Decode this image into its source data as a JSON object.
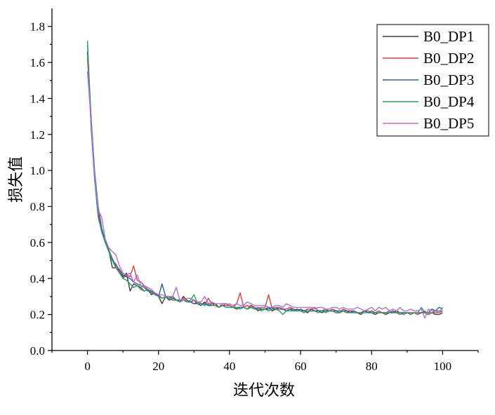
{
  "chart_data": {
    "type": "line",
    "title": "",
    "xlabel": "迭代次数",
    "ylabel": "损失值",
    "xlim": [
      -10,
      110
    ],
    "ylim": [
      0,
      1.9
    ],
    "xticks": [
      "0",
      "20",
      "40",
      "60",
      "80",
      "100"
    ],
    "yticks": [
      "0.0",
      "0.2",
      "0.4",
      "0.6",
      "0.8",
      "1.0",
      "1.2",
      "1.4",
      "1.6",
      "1.8"
    ],
    "legend_position": "top-right",
    "grid": false,
    "x": [
      0,
      1,
      2,
      3,
      4,
      5,
      6,
      7,
      8,
      9,
      10,
      11,
      12,
      13,
      14,
      15,
      16,
      17,
      18,
      19,
      20,
      21,
      22,
      23,
      24,
      25,
      26,
      27,
      28,
      29,
      30,
      31,
      32,
      33,
      34,
      35,
      36,
      37,
      38,
      39,
      40,
      41,
      42,
      43,
      44,
      45,
      46,
      47,
      48,
      49,
      50,
      51,
      52,
      53,
      54,
      55,
      56,
      57,
      58,
      59,
      60,
      61,
      62,
      63,
      64,
      65,
      66,
      67,
      68,
      69,
      70,
      71,
      72,
      73,
      74,
      75,
      76,
      77,
      78,
      79,
      80,
      81,
      82,
      83,
      84,
      85,
      86,
      87,
      88,
      89,
      90,
      91,
      92,
      93,
      94,
      95,
      96,
      97,
      98,
      99,
      100
    ],
    "series": [
      {
        "name": "B0_DP1",
        "color": "#404040",
        "values": [
          1.66,
          1.25,
          0.96,
          0.76,
          0.66,
          0.6,
          0.56,
          0.46,
          0.46,
          0.44,
          0.41,
          0.43,
          0.33,
          0.37,
          0.36,
          0.35,
          0.33,
          0.34,
          0.31,
          0.32,
          0.3,
          0.26,
          0.3,
          0.28,
          0.29,
          0.28,
          0.27,
          0.3,
          0.28,
          0.27,
          0.28,
          0.26,
          0.25,
          0.27,
          0.25,
          0.26,
          0.26,
          0.24,
          0.25,
          0.25,
          0.25,
          0.24,
          0.23,
          0.24,
          0.24,
          0.23,
          0.25,
          0.24,
          0.22,
          0.23,
          0.23,
          0.24,
          0.22,
          0.23,
          0.24,
          0.23,
          0.22,
          0.23,
          0.22,
          0.23,
          0.22,
          0.22,
          0.21,
          0.23,
          0.22,
          0.22,
          0.21,
          0.22,
          0.22,
          0.22,
          0.21,
          0.21,
          0.22,
          0.21,
          0.22,
          0.21,
          0.21,
          0.2,
          0.22,
          0.21,
          0.21,
          0.2,
          0.21,
          0.21,
          0.2,
          0.21,
          0.21,
          0.22,
          0.21,
          0.2,
          0.21,
          0.2,
          0.21,
          0.2,
          0.21,
          0.21,
          0.2,
          0.21,
          0.2,
          0.2,
          0.21
        ]
      },
      {
        "name": "B0_DP2",
        "color": "#d94040",
        "values": [
          1.62,
          1.3,
          0.99,
          0.76,
          0.67,
          0.6,
          0.55,
          0.5,
          0.48,
          0.44,
          0.4,
          0.42,
          0.41,
          0.47,
          0.39,
          0.38,
          0.36,
          0.34,
          0.33,
          0.31,
          0.31,
          0.29,
          0.3,
          0.3,
          0.29,
          0.28,
          0.28,
          0.29,
          0.27,
          0.27,
          0.26,
          0.27,
          0.26,
          0.25,
          0.29,
          0.26,
          0.25,
          0.24,
          0.26,
          0.26,
          0.25,
          0.24,
          0.26,
          0.32,
          0.24,
          0.25,
          0.24,
          0.24,
          0.23,
          0.24,
          0.24,
          0.31,
          0.23,
          0.24,
          0.24,
          0.23,
          0.23,
          0.24,
          0.23,
          0.22,
          0.23,
          0.22,
          0.23,
          0.23,
          0.24,
          0.22,
          0.22,
          0.23,
          0.22,
          0.23,
          0.22,
          0.21,
          0.23,
          0.22,
          0.22,
          0.22,
          0.21,
          0.21,
          0.22,
          0.22,
          0.21,
          0.21,
          0.22,
          0.21,
          0.21,
          0.22,
          0.21,
          0.21,
          0.2,
          0.21,
          0.21,
          0.2,
          0.21,
          0.2,
          0.21,
          0.22,
          0.2,
          0.21,
          0.21,
          0.21,
          0.22
        ]
      },
      {
        "name": "B0_DP3",
        "color": "#2a5fa8",
        "values": [
          1.7,
          1.3,
          1.0,
          0.8,
          0.68,
          0.61,
          0.56,
          0.51,
          0.47,
          0.45,
          0.42,
          0.41,
          0.4,
          0.38,
          0.37,
          0.36,
          0.35,
          0.33,
          0.33,
          0.32,
          0.3,
          0.37,
          0.3,
          0.29,
          0.3,
          0.28,
          0.28,
          0.28,
          0.27,
          0.27,
          0.26,
          0.26,
          0.26,
          0.26,
          0.25,
          0.25,
          0.25,
          0.24,
          0.25,
          0.24,
          0.24,
          0.24,
          0.24,
          0.24,
          0.24,
          0.23,
          0.24,
          0.23,
          0.24,
          0.23,
          0.23,
          0.23,
          0.24,
          0.23,
          0.23,
          0.23,
          0.22,
          0.23,
          0.23,
          0.22,
          0.23,
          0.22,
          0.22,
          0.22,
          0.22,
          0.22,
          0.22,
          0.22,
          0.22,
          0.22,
          0.22,
          0.22,
          0.22,
          0.22,
          0.21,
          0.22,
          0.21,
          0.21,
          0.22,
          0.21,
          0.22,
          0.21,
          0.21,
          0.21,
          0.21,
          0.21,
          0.22,
          0.21,
          0.21,
          0.21,
          0.21,
          0.21,
          0.21,
          0.21,
          0.21,
          0.21,
          0.21,
          0.23,
          0.22,
          0.24,
          0.23
        ]
      },
      {
        "name": "B0_DP4",
        "color": "#2e9e60",
        "values": [
          1.72,
          1.25,
          0.95,
          0.74,
          0.66,
          0.6,
          0.55,
          0.5,
          0.46,
          0.43,
          0.4,
          0.39,
          0.37,
          0.35,
          0.36,
          0.34,
          0.33,
          0.34,
          0.32,
          0.31,
          0.3,
          0.29,
          0.3,
          0.29,
          0.28,
          0.28,
          0.27,
          0.28,
          0.27,
          0.28,
          0.31,
          0.26,
          0.26,
          0.25,
          0.26,
          0.25,
          0.25,
          0.24,
          0.25,
          0.24,
          0.24,
          0.24,
          0.24,
          0.23,
          0.24,
          0.23,
          0.24,
          0.23,
          0.23,
          0.22,
          0.23,
          0.22,
          0.23,
          0.23,
          0.22,
          0.2,
          0.22,
          0.22,
          0.22,
          0.22,
          0.22,
          0.21,
          0.22,
          0.22,
          0.22,
          0.21,
          0.22,
          0.21,
          0.22,
          0.22,
          0.21,
          0.21,
          0.22,
          0.21,
          0.21,
          0.21,
          0.21,
          0.21,
          0.21,
          0.21,
          0.21,
          0.21,
          0.21,
          0.21,
          0.21,
          0.21,
          0.21,
          0.21,
          0.21,
          0.2,
          0.21,
          0.21,
          0.21,
          0.21,
          0.24,
          0.21,
          0.21,
          0.21,
          0.22,
          0.22,
          0.22
        ]
      },
      {
        "name": "B0_DP5",
        "color": "#b070e0",
        "values": [
          1.55,
          1.28,
          0.98,
          0.78,
          0.74,
          0.62,
          0.57,
          0.55,
          0.53,
          0.47,
          0.43,
          0.42,
          0.43,
          0.38,
          0.42,
          0.36,
          0.36,
          0.35,
          0.34,
          0.32,
          0.31,
          0.31,
          0.3,
          0.3,
          0.3,
          0.35,
          0.28,
          0.28,
          0.29,
          0.29,
          0.28,
          0.27,
          0.27,
          0.3,
          0.26,
          0.27,
          0.26,
          0.26,
          0.26,
          0.25,
          0.26,
          0.25,
          0.26,
          0.25,
          0.25,
          0.27,
          0.26,
          0.25,
          0.25,
          0.25,
          0.25,
          0.24,
          0.24,
          0.25,
          0.25,
          0.24,
          0.26,
          0.25,
          0.24,
          0.24,
          0.24,
          0.24,
          0.24,
          0.24,
          0.23,
          0.24,
          0.24,
          0.23,
          0.23,
          0.24,
          0.24,
          0.23,
          0.24,
          0.23,
          0.23,
          0.23,
          0.24,
          0.23,
          0.22,
          0.23,
          0.24,
          0.22,
          0.24,
          0.23,
          0.24,
          0.22,
          0.23,
          0.22,
          0.24,
          0.22,
          0.22,
          0.23,
          0.22,
          0.22,
          0.23,
          0.18,
          0.23,
          0.22,
          0.22,
          0.21,
          0.24
        ]
      }
    ]
  }
}
